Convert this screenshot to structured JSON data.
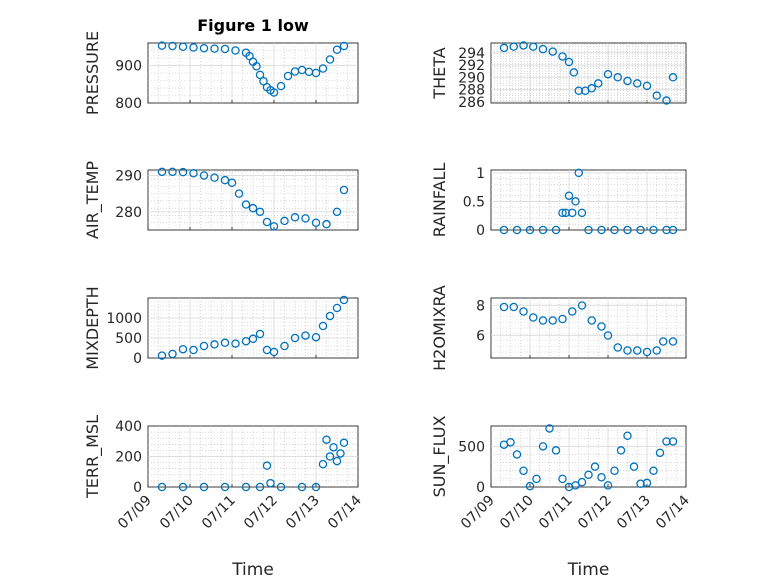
{
  "title": "Figure 1 low",
  "colors": {
    "marker": "#0072bd",
    "axis": "#262626",
    "grid": "#d9d9d9"
  },
  "chart_data": [
    {
      "type": "scatter",
      "name": "pressure",
      "title": "Figure 1 low",
      "ylabel": "PRESSURE",
      "xlabel": "",
      "show_xticks": false,
      "ylim": [
        800,
        960
      ],
      "yticks": [
        800,
        900
      ],
      "grid": true,
      "minor_grid": true,
      "x": [
        "2012-07-09 08:00",
        "2012-07-09 14:00",
        "2012-07-09 20:00",
        "2012-07-10 02:00",
        "2012-07-10 08:00",
        "2012-07-10 14:00",
        "2012-07-10 20:00",
        "2012-07-11 02:00",
        "2012-07-11 08:00",
        "2012-07-11 10:00",
        "2012-07-11 12:00",
        "2012-07-11 14:00",
        "2012-07-11 16:00",
        "2012-07-11 18:00",
        "2012-07-11 20:00",
        "2012-07-11 22:00",
        "2012-07-12 00:00",
        "2012-07-12 04:00",
        "2012-07-12 08:00",
        "2012-07-12 12:00",
        "2012-07-12 16:00",
        "2012-07-12 20:00",
        "2012-07-13 00:00",
        "2012-07-13 04:00",
        "2012-07-13 08:00",
        "2012-07-13 12:00",
        "2012-07-13 16:00"
      ],
      "y": [
        953,
        952,
        950,
        948,
        946,
        945,
        944,
        940,
        934,
        925,
        910,
        898,
        875,
        858,
        842,
        834,
        828,
        845,
        872,
        884,
        888,
        883,
        880,
        892,
        916,
        942,
        952
      ]
    },
    {
      "type": "scatter",
      "name": "theta",
      "title": "",
      "ylabel": "THETA",
      "xlabel": "",
      "show_xticks": false,
      "ylim": [
        285.8,
        295.6
      ],
      "yticks": [
        286,
        288,
        290,
        292,
        294
      ],
      "grid": true,
      "minor_grid": true,
      "x": [
        "2012-07-09 08:00",
        "2012-07-09 14:00",
        "2012-07-09 20:00",
        "2012-07-10 02:00",
        "2012-07-10 08:00",
        "2012-07-10 14:00",
        "2012-07-10 20:00",
        "2012-07-11 00:00",
        "2012-07-11 03:00",
        "2012-07-11 06:00",
        "2012-07-11 10:00",
        "2012-07-11 14:00",
        "2012-07-11 18:00",
        "2012-07-12 00:00",
        "2012-07-12 06:00",
        "2012-07-12 12:00",
        "2012-07-12 18:00",
        "2012-07-13 00:00",
        "2012-07-13 06:00",
        "2012-07-13 12:00",
        "2012-07-13 16:00"
      ],
      "y": [
        294.8,
        295.0,
        295.2,
        295.0,
        294.6,
        294.2,
        293.4,
        292.5,
        290.8,
        287.8,
        287.8,
        288.2,
        289.0,
        290.5,
        290.0,
        289.4,
        289.0,
        288.6,
        287.0,
        286.2,
        290.0
      ]
    },
    {
      "type": "scatter",
      "name": "air_temp",
      "title": "",
      "ylabel": "AIR_TEMP",
      "xlabel": "",
      "show_xticks": false,
      "ylim": [
        275,
        291.5
      ],
      "yticks": [
        280,
        290
      ],
      "grid": true,
      "minor_grid": true,
      "x": [
        "2012-07-09 08:00",
        "2012-07-09 14:00",
        "2012-07-09 20:00",
        "2012-07-10 02:00",
        "2012-07-10 08:00",
        "2012-07-10 14:00",
        "2012-07-10 20:00",
        "2012-07-11 00:00",
        "2012-07-11 04:00",
        "2012-07-11 08:00",
        "2012-07-11 12:00",
        "2012-07-11 16:00",
        "2012-07-11 20:00",
        "2012-07-12 00:00",
        "2012-07-12 06:00",
        "2012-07-12 12:00",
        "2012-07-12 18:00",
        "2012-07-13 00:00",
        "2012-07-13 06:00",
        "2012-07-13 12:00",
        "2012-07-13 16:00"
      ],
      "y": [
        291.0,
        291.0,
        290.9,
        290.6,
        290.0,
        289.4,
        288.7,
        288.0,
        285.0,
        282.0,
        281.0,
        280.0,
        277.2,
        276.0,
        277.5,
        278.5,
        278.2,
        277.0,
        276.6,
        280.0,
        286.0
      ]
    },
    {
      "type": "scatter",
      "name": "rainfall",
      "title": "",
      "ylabel": "RAINFALL",
      "xlabel": "",
      "show_xticks": false,
      "ylim": [
        0,
        1.05
      ],
      "yticks": [
        0,
        0.5,
        1
      ],
      "grid": true,
      "minor_grid": true,
      "x": [
        "2012-07-09 08:00",
        "2012-07-09 16:00",
        "2012-07-10 00:00",
        "2012-07-10 08:00",
        "2012-07-10 16:00",
        "2012-07-10 20:00",
        "2012-07-10 22:00",
        "2012-07-11 00:00",
        "2012-07-11 02:00",
        "2012-07-11 04:00",
        "2012-07-11 06:00",
        "2012-07-11 08:00",
        "2012-07-11 12:00",
        "2012-07-11 20:00",
        "2012-07-12 04:00",
        "2012-07-12 12:00",
        "2012-07-12 20:00",
        "2012-07-13 04:00",
        "2012-07-13 12:00",
        "2012-07-13 16:00"
      ],
      "y": [
        0,
        0,
        0,
        0,
        0,
        0.3,
        0.3,
        0.6,
        0.3,
        0.5,
        1.0,
        0.3,
        0,
        0,
        0,
        0,
        0,
        0,
        0,
        0
      ]
    },
    {
      "type": "scatter",
      "name": "mixdepth",
      "title": "",
      "ylabel": "MIXDEPTH",
      "xlabel": "",
      "show_xticks": false,
      "ylim": [
        0,
        1500
      ],
      "yticks": [
        0,
        500,
        1000
      ],
      "grid": true,
      "minor_grid": true,
      "x": [
        "2012-07-09 08:00",
        "2012-07-09 14:00",
        "2012-07-09 20:00",
        "2012-07-10 02:00",
        "2012-07-10 08:00",
        "2012-07-10 14:00",
        "2012-07-10 20:00",
        "2012-07-11 02:00",
        "2012-07-11 08:00",
        "2012-07-11 12:00",
        "2012-07-11 16:00",
        "2012-07-11 20:00",
        "2012-07-12 00:00",
        "2012-07-12 06:00",
        "2012-07-12 12:00",
        "2012-07-12 18:00",
        "2012-07-13 00:00",
        "2012-07-13 04:00",
        "2012-07-13 08:00",
        "2012-07-13 12:00",
        "2012-07-13 16:00"
      ],
      "y": [
        60,
        100,
        220,
        200,
        300,
        340,
        380,
        360,
        420,
        480,
        600,
        200,
        150,
        300,
        500,
        560,
        520,
        800,
        1050,
        1250,
        1450
      ]
    },
    {
      "type": "scatter",
      "name": "h2omixra",
      "title": "",
      "ylabel": "H2OMIXRA",
      "xlabel": "",
      "show_xticks": false,
      "ylim": [
        4.5,
        8.5
      ],
      "yticks": [
        6,
        8
      ],
      "grid": true,
      "minor_grid": true,
      "x": [
        "2012-07-09 08:00",
        "2012-07-09 14:00",
        "2012-07-09 20:00",
        "2012-07-10 02:00",
        "2012-07-10 08:00",
        "2012-07-10 14:00",
        "2012-07-10 20:00",
        "2012-07-11 02:00",
        "2012-07-11 08:00",
        "2012-07-11 14:00",
        "2012-07-11 20:00",
        "2012-07-12 00:00",
        "2012-07-12 06:00",
        "2012-07-12 12:00",
        "2012-07-12 18:00",
        "2012-07-13 00:00",
        "2012-07-13 06:00",
        "2012-07-13 10:00",
        "2012-07-13 16:00"
      ],
      "y": [
        7.9,
        7.9,
        7.6,
        7.2,
        7.0,
        7.0,
        7.1,
        7.6,
        8.0,
        7.0,
        6.6,
        6.0,
        5.2,
        5.0,
        5.0,
        4.9,
        5.0,
        5.6,
        5.6
      ]
    },
    {
      "type": "scatter",
      "name": "terr_msl",
      "title": "",
      "ylabel": "TERR_MSL",
      "xlabel": "Time",
      "show_xticks": true,
      "ylim": [
        0,
        400
      ],
      "yticks": [
        0,
        200,
        400
      ],
      "grid": true,
      "minor_grid": true,
      "x": [
        "2012-07-09 08:00",
        "2012-07-09 20:00",
        "2012-07-10 08:00",
        "2012-07-10 20:00",
        "2012-07-11 08:00",
        "2012-07-11 16:00",
        "2012-07-11 20:00",
        "2012-07-11 22:00",
        "2012-07-12 04:00",
        "2012-07-12 16:00",
        "2012-07-13 00:00",
        "2012-07-13 04:00",
        "2012-07-13 06:00",
        "2012-07-13 08:00",
        "2012-07-13 10:00",
        "2012-07-13 12:00",
        "2012-07-13 14:00",
        "2012-07-13 16:00"
      ],
      "y": [
        0,
        0,
        0,
        0,
        0,
        0,
        140,
        25,
        0,
        0,
        0,
        150,
        310,
        200,
        260,
        170,
        220,
        290
      ]
    },
    {
      "type": "scatter",
      "name": "sun_flux",
      "title": "",
      "ylabel": "SUN_FLUX",
      "xlabel": "Time",
      "show_xticks": true,
      "ylim": [
        0,
        750
      ],
      "yticks": [
        0,
        500
      ],
      "grid": true,
      "minor_grid": true,
      "x": [
        "2012-07-09 08:00",
        "2012-07-09 12:00",
        "2012-07-09 16:00",
        "2012-07-09 20:00",
        "2012-07-10 00:00",
        "2012-07-10 04:00",
        "2012-07-10 08:00",
        "2012-07-10 12:00",
        "2012-07-10 16:00",
        "2012-07-10 20:00",
        "2012-07-11 00:00",
        "2012-07-11 04:00",
        "2012-07-11 08:00",
        "2012-07-11 12:00",
        "2012-07-11 16:00",
        "2012-07-11 20:00",
        "2012-07-12 00:00",
        "2012-07-12 04:00",
        "2012-07-12 08:00",
        "2012-07-12 12:00",
        "2012-07-12 16:00",
        "2012-07-12 20:00",
        "2012-07-13 00:00",
        "2012-07-13 04:00",
        "2012-07-13 08:00",
        "2012-07-13 12:00",
        "2012-07-13 16:00"
      ],
      "y": [
        520,
        550,
        400,
        200,
        10,
        100,
        500,
        720,
        450,
        100,
        0,
        20,
        60,
        150,
        250,
        120,
        20,
        200,
        450,
        630,
        250,
        40,
        50,
        200,
        420,
        560,
        560
      ]
    }
  ],
  "x_axis": {
    "range": [
      "2012-07-09 00:00",
      "2012-07-14 00:00"
    ],
    "tick_labels": [
      "07/09",
      "07/10",
      "07/11",
      "07/12",
      "07/13",
      "07/14"
    ]
  }
}
